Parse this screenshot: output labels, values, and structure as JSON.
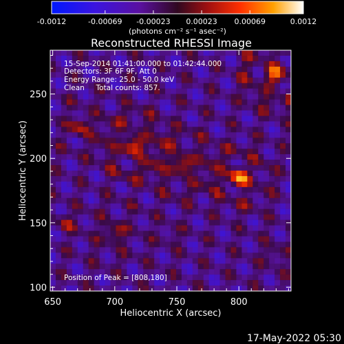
{
  "chart_data": {
    "type": "heatmap",
    "title": "Reconstructed RHESSI Image",
    "xlabel": "Heliocentric X (arcsec)",
    "ylabel": "Heliocentric Y (arcsec)",
    "xlim": [
      648,
      842
    ],
    "ylim": [
      97,
      284
    ],
    "x_ticks": [
      650,
      700,
      750,
      800
    ],
    "y_ticks": [
      100,
      150,
      200,
      250
    ],
    "colorbar": {
      "range": [
        -0.0012,
        0.0012
      ],
      "tick_labels": [
        "-0.0012",
        "-0.00069",
        "-0.00023",
        "0.00023",
        "0.00069",
        "0.0012"
      ],
      "tick_values": [
        -0.0012,
        -0.00069,
        -0.00023,
        0.00023,
        0.00069,
        0.0012
      ],
      "units_label": "(photons cm⁻² s⁻¹ asec⁻²)",
      "colors": [
        "#0018ff",
        "#5a10c0",
        "#3b0a48",
        "#8a1010",
        "#ff3000",
        "#ffa000",
        "#ffffff"
      ]
    },
    "annotations": {
      "time": "15-Sep-2014 01:41:00.000 to 01:42:44.000",
      "detectors": "Detectors: 3F 6F 9F, Att 0",
      "energy": "Energy Range: 25.0 - 50.0 keV",
      "clean": "Clean     Total counts: 857.",
      "peak": "Position of Peak = [808,180]"
    },
    "sources": [
      {
        "x": 830,
        "y": 265,
        "amp": 0.001,
        "sigma": 16
      },
      {
        "x": 800,
        "y": 185,
        "amp": 0.0012,
        "sigma": 13
      },
      {
        "x": 755,
        "y": 195,
        "amp": 0.0009,
        "sigma": 14
      },
      {
        "x": 715,
        "y": 210,
        "amp": 0.001,
        "sigma": 15
      },
      {
        "x": 672,
        "y": 225,
        "amp": 0.0007,
        "sigma": 11
      },
      {
        "x": 700,
        "y": 142,
        "amp": 0.0007,
        "sigma": 12
      },
      {
        "x": 660,
        "y": 150,
        "amp": 0.0005,
        "sigma": 9
      },
      {
        "x": 828,
        "y": 125,
        "amp": 0.0004,
        "sigma": 11
      },
      {
        "x": 745,
        "y": 140,
        "amp": 0.0003,
        "sigma": 10
      }
    ],
    "peak": {
      "x": 808,
      "y": 180
    }
  },
  "footer": {
    "date": "17-May-2022 05:30"
  }
}
